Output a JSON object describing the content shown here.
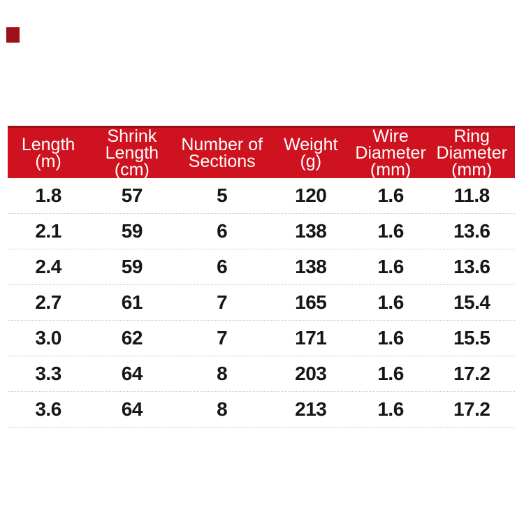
{
  "colors": {
    "header_red": "#cf121f",
    "header_red_dark": "#9b0f16",
    "corner_red": "#a01019",
    "text": "#161616",
    "divider": "#c6c6c6"
  },
  "table": {
    "header": [
      {
        "lines": [
          "Length",
          "(m)"
        ]
      },
      {
        "lines": [
          "Shrink",
          "Length",
          "(cm)"
        ]
      },
      {
        "lines": [
          "Number of",
          "Sections"
        ]
      },
      {
        "lines": [
          "Weight",
          "(g)"
        ]
      },
      {
        "lines": [
          "Wire",
          "Diameter",
          "(mm)"
        ]
      },
      {
        "lines": [
          "Ring",
          "Diameter",
          "(mm)"
        ]
      }
    ],
    "rows": [
      [
        "1.8",
        "57",
        "5",
        "120",
        "1.6",
        "11.8"
      ],
      [
        "2.1",
        "59",
        "6",
        "138",
        "1.6",
        "13.6"
      ],
      [
        "2.4",
        "59",
        "6",
        "138",
        "1.6",
        "13.6"
      ],
      [
        "2.7",
        "61",
        "7",
        "165",
        "1.6",
        "15.4"
      ],
      [
        "3.0",
        "62",
        "7",
        "171",
        "1.6",
        "15.5"
      ],
      [
        "3.3",
        "64",
        "8",
        "203",
        "1.6",
        "17.2"
      ],
      [
        "3.6",
        "64",
        "8",
        "213",
        "1.6",
        "17.2"
      ]
    ]
  },
  "chart_data": {
    "type": "table",
    "columns": [
      "Length (m)",
      "Shrink Length (cm)",
      "Number of Sections",
      "Weight (g)",
      "Wire Diameter (mm)",
      "Ring Diameter (mm)"
    ],
    "rows": [
      [
        1.8,
        57,
        5,
        120,
        1.6,
        11.8
      ],
      [
        2.1,
        59,
        6,
        138,
        1.6,
        13.6
      ],
      [
        2.4,
        59,
        6,
        138,
        1.6,
        13.6
      ],
      [
        2.7,
        61,
        7,
        165,
        1.6,
        15.4
      ],
      [
        3.0,
        62,
        7,
        171,
        1.6,
        15.5
      ],
      [
        3.3,
        64,
        8,
        203,
        1.6,
        17.2
      ],
      [
        3.6,
        64,
        8,
        213,
        1.6,
        17.2
      ]
    ]
  }
}
